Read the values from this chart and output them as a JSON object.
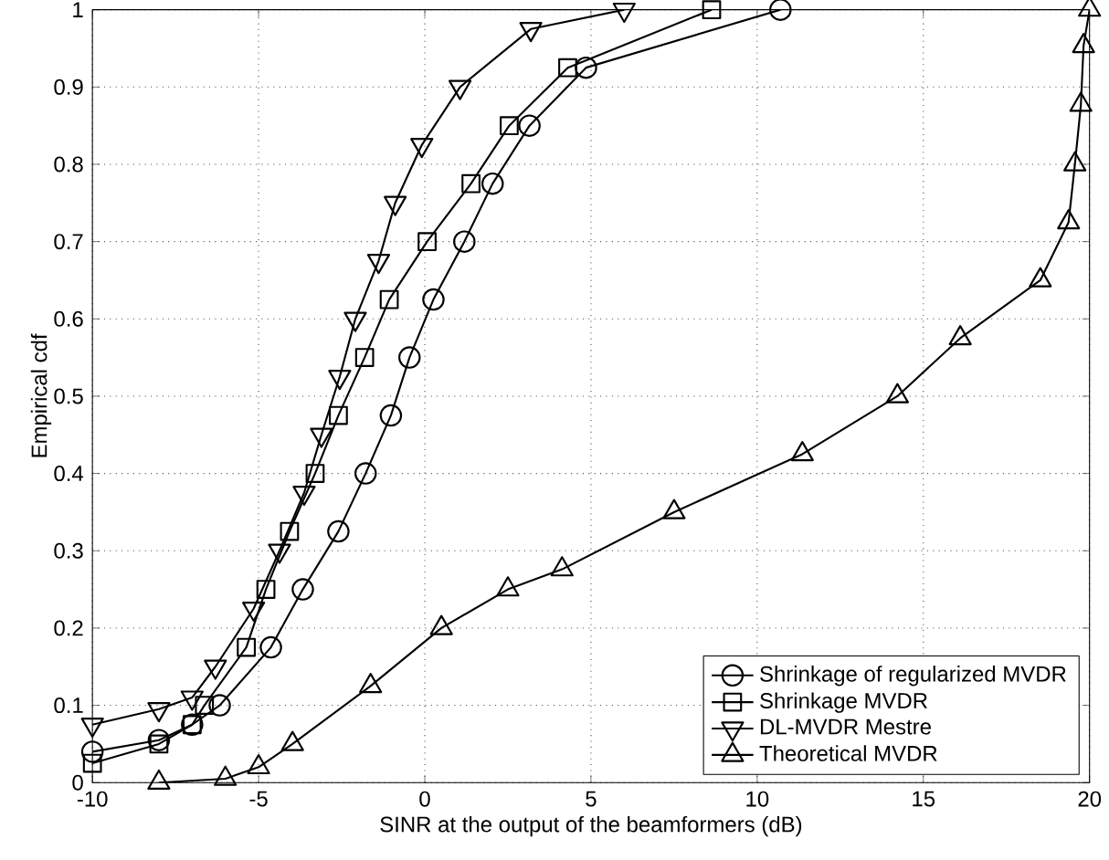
{
  "chart_data": {
    "type": "line",
    "xlabel": "SINR at the output of the beamformers (dB)",
    "ylabel": "Empirical cdf",
    "xlim": [
      -10,
      20
    ],
    "ylim": [
      0,
      1
    ],
    "xticks": [
      -10,
      -5,
      0,
      5,
      10,
      15,
      20
    ],
    "yticks": [
      0,
      0.1,
      0.2,
      0.3,
      0.4,
      0.5,
      0.6,
      0.7,
      0.8,
      0.9,
      1
    ],
    "grid": true,
    "legend": "bottom right",
    "line_style": "solid",
    "series": [
      {
        "name": "Shrinkage of regularized MVDR",
        "color": "#000000",
        "marker": "circle",
        "x": [
          -10,
          -8,
          -7,
          -6.17,
          -4.63,
          -3.67,
          -2.6,
          -1.78,
          -1.02,
          -0.46,
          0.26,
          1.19,
          2.04,
          3.15,
          4.85,
          10.7
        ],
        "values": [
          0.04,
          0.055,
          0.075,
          0.1,
          0.175,
          0.25,
          0.325,
          0.4,
          0.475,
          0.55,
          0.625,
          0.7,
          0.775,
          0.85,
          0.925,
          1
        ]
      },
      {
        "name": "Shrinkage MVDR",
        "color": "#000000",
        "marker": "square",
        "x": [
          -10,
          -8,
          -7,
          -6.63,
          -5.37,
          -4.78,
          -4.07,
          -3.3,
          -2.6,
          -1.81,
          -1.07,
          0.07,
          1.39,
          2.54,
          4.3,
          8.63
        ],
        "values": [
          0.025,
          0.05,
          0.075,
          0.1,
          0.175,
          0.25,
          0.325,
          0.4,
          0.475,
          0.55,
          0.625,
          0.7,
          0.775,
          0.85,
          0.925,
          1
        ]
      },
      {
        "name": "DL-MVDR Mestre",
        "color": "#000000",
        "marker": "triangle-down",
        "x": [
          -10,
          -8,
          -7,
          -6.3,
          -5.15,
          -4.37,
          -3.63,
          -3.11,
          -2.56,
          -2.09,
          -1.39,
          -0.89,
          -0.09,
          1.06,
          3.19,
          6
        ],
        "values": [
          0.075,
          0.095,
          0.11,
          0.15,
          0.225,
          0.3,
          0.375,
          0.45,
          0.525,
          0.6,
          0.675,
          0.75,
          0.825,
          0.9,
          0.975,
          1
        ]
      },
      {
        "name": "Theoretical MVDR",
        "color": "#000000",
        "marker": "triangle",
        "x": [
          -8,
          -6,
          -5,
          -3.98,
          -1.63,
          0.5,
          2.5,
          4.13,
          7.5,
          11.36,
          14.22,
          16.11,
          18.52,
          19.37,
          19.56,
          19.74,
          19.82,
          20
        ],
        "values": [
          0,
          0.005,
          0.02,
          0.05,
          0.125,
          0.2,
          0.25,
          0.276,
          0.35,
          0.425,
          0.5,
          0.575,
          0.65,
          0.725,
          0.8,
          0.877,
          0.953,
          1
        ]
      }
    ]
  }
}
